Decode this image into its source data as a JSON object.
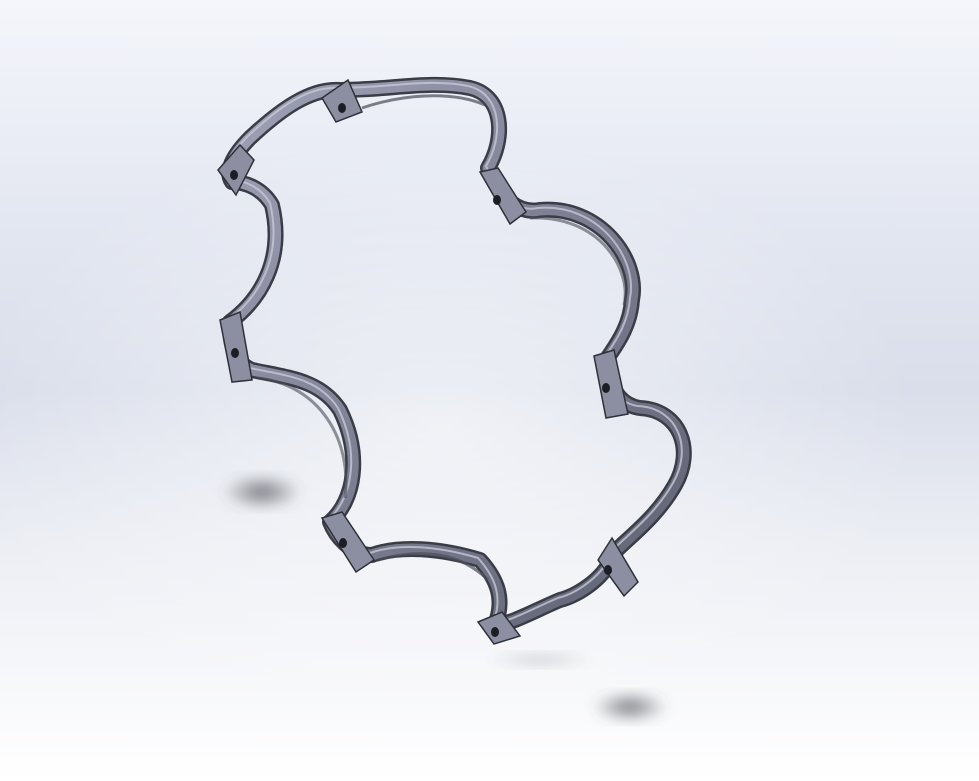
{
  "viewport": {
    "background_top": "#f4f6fb",
    "background_mid": "#d9deea",
    "background_bottom": "#ffffff"
  },
  "model": {
    "part_icon": "clamp-ring-part",
    "body_color": "#6f7283",
    "face_color": "#9a9db0",
    "edge_color": "#2e3038",
    "hole_color": "#1d1e24",
    "shadow_color": "#5a5d66"
  }
}
